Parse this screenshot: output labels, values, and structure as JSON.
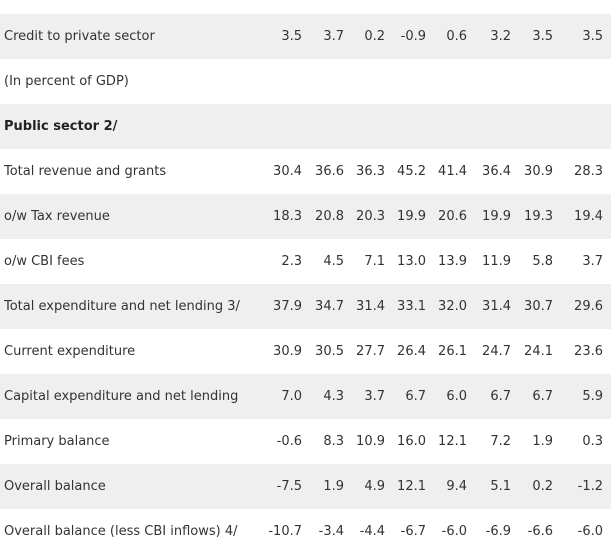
{
  "rows": [
    {
      "label": "Credit to private sector",
      "values": [
        "3.5",
        "3.7",
        "0.2",
        "-0.9",
        "0.6",
        "3.2",
        "3.5",
        "3.5"
      ]
    },
    {
      "label": "(In percent of GDP)",
      "values": []
    },
    {
      "label": "Public sector 2/",
      "values": []
    },
    {
      "label": "Total revenue and grants",
      "values": [
        "30.4",
        "36.6",
        "36.3",
        "45.2",
        "41.4",
        "36.4",
        "30.9",
        "28.3"
      ]
    },
    {
      "label": "o/w Tax revenue",
      "values": [
        "18.3",
        "20.8",
        "20.3",
        "19.9",
        "20.6",
        "19.9",
        "19.3",
        "19.4"
      ]
    },
    {
      "label": "o/w CBI fees",
      "values": [
        "2.3",
        "4.5",
        "7.1",
        "13.0",
        "13.9",
        "11.9",
        "5.8",
        "3.7"
      ]
    },
    {
      "label": "Total expenditure and net lending 3/",
      "values": [
        "37.9",
        "34.7",
        "31.4",
        "33.1",
        "32.0",
        "31.4",
        "30.7",
        "29.6"
      ]
    },
    {
      "label": "Current expenditure",
      "values": [
        "30.9",
        "30.5",
        "27.7",
        "26.4",
        "26.1",
        "24.7",
        "24.1",
        "23.6"
      ]
    },
    {
      "label": "Capital expenditure and net lending",
      "values": [
        "7.0",
        "4.3",
        "3.7",
        "6.7",
        "6.0",
        "6.7",
        "6.7",
        "5.9"
      ]
    },
    {
      "label": "Primary balance",
      "values": [
        "-0.6",
        "8.3",
        "10.9",
        "16.0",
        "12.1",
        "7.2",
        "1.9",
        "0.3"
      ]
    },
    {
      "label": "Overall balance",
      "values": [
        "-7.5",
        "1.9",
        "4.9",
        "12.1",
        "9.4",
        "5.1",
        "0.2",
        "-1.2"
      ]
    },
    {
      "label": "Overall balance (less CBI inflows) 4/",
      "values": [
        "-10.7",
        "-3.4",
        "-4.4",
        "-6.7",
        "-6.0",
        "-6.9",
        "-6.6",
        "-6.0"
      ]
    }
  ]
}
